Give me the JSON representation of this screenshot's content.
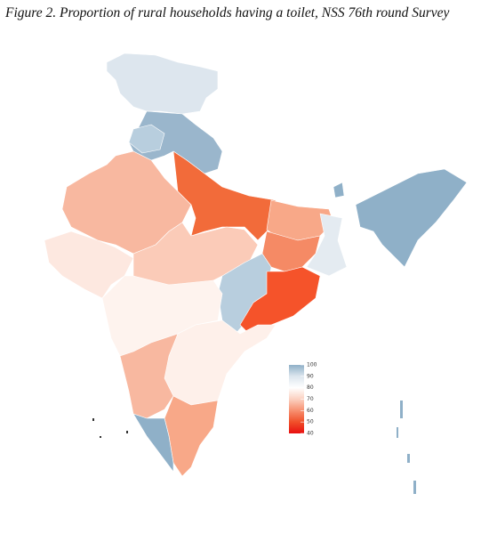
{
  "title": "Figure 2. Proportion of rural households having a toilet, NSS 76th round Survey",
  "legend": {
    "lim": [
      40,
      100
    ],
    "ticks": [
      100,
      90,
      80,
      70,
      60,
      50,
      40
    ],
    "colors": [
      "#8fb0c8",
      "#dce6ee",
      "#ffffff",
      "#fbd0c0",
      "#f79070",
      "#f0502a",
      "#e81010"
    ]
  }
}
